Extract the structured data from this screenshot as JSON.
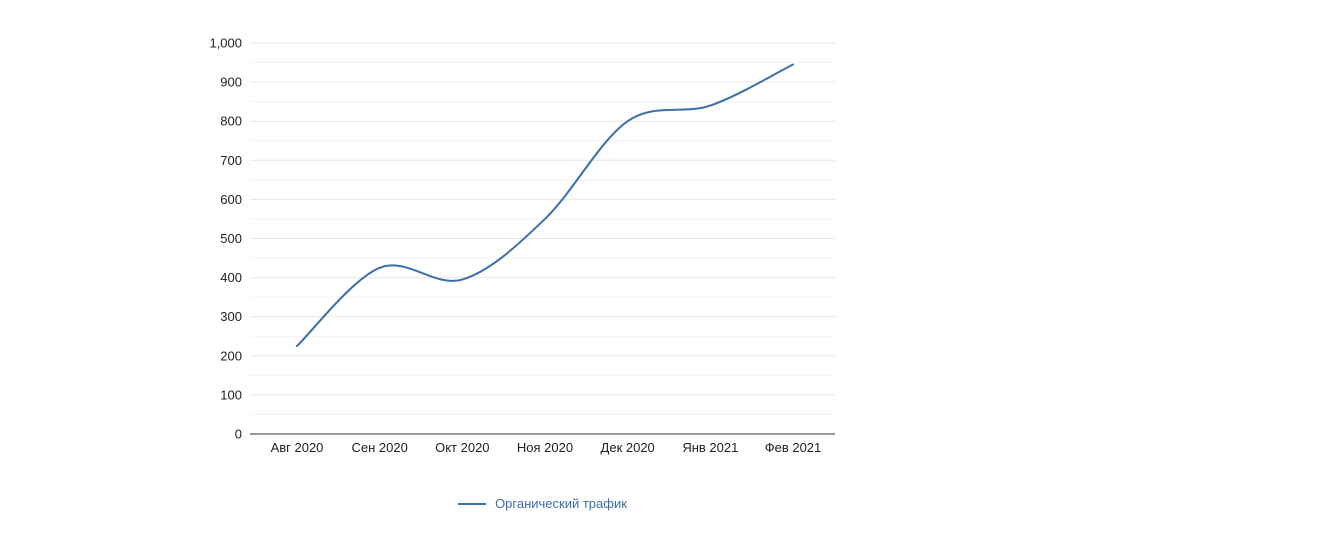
{
  "chart_data": {
    "type": "line",
    "title": "",
    "categories": [
      "Авг 2020",
      "Сен 2020",
      "Окт 2020",
      "Ноя 2020",
      "Дек 2020",
      "Янв 2021",
      "Фев 2021"
    ],
    "series": [
      {
        "name": "Органический трафик",
        "values": [
          225,
          425,
          395,
          550,
          800,
          840,
          945
        ],
        "color": "#3d6fa8"
      }
    ],
    "xlabel": "",
    "ylabel": "",
    "ylim": [
      0,
      1000
    ],
    "y_major_step": 100,
    "y_minor_step": 50,
    "y_tick_labels": [
      "0",
      "100",
      "200",
      "300",
      "400",
      "500",
      "600",
      "700",
      "800",
      "900",
      "1,000"
    ],
    "grid": true,
    "smooth": true,
    "legend_position": "bottom",
    "colors": {
      "major_grid": "#e6e6e6",
      "minor_grid": "#f3f3f3",
      "axis_line": "#333333",
      "tick_text": "#222222",
      "legend_text": "#3d6fa8"
    }
  }
}
